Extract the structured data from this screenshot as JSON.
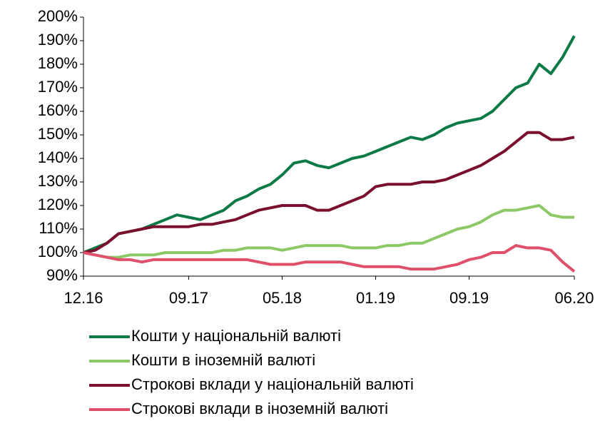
{
  "chart_data": {
    "type": "line",
    "categories": [
      "12.16",
      null,
      null,
      null,
      null,
      null,
      null,
      null,
      null,
      "09.17",
      null,
      null,
      null,
      null,
      null,
      null,
      null,
      "05.18",
      null,
      null,
      null,
      null,
      null,
      null,
      null,
      "01.19",
      null,
      null,
      null,
      null,
      null,
      null,
      null,
      "09.19",
      null,
      null,
      null,
      null,
      null,
      null,
      null,
      null,
      "06.20"
    ],
    "series": [
      {
        "name": "Кошти у національній валюті",
        "color": "#0b7a45",
        "values": [
          100,
          102,
          104,
          108,
          109,
          110,
          112,
          114,
          116,
          115,
          114,
          116,
          118,
          122,
          124,
          127,
          129,
          133,
          138,
          139,
          137,
          136,
          138,
          140,
          141,
          143,
          145,
          147,
          149,
          148,
          150,
          153,
          155,
          156,
          157,
          160,
          165,
          170,
          172,
          180,
          176,
          183,
          192
        ]
      },
      {
        "name": "Кошти в іноземній валюті",
        "color": "#8cc865",
        "values": [
          100,
          99,
          98,
          98,
          99,
          99,
          99,
          100,
          100,
          100,
          100,
          100,
          101,
          101,
          102,
          102,
          102,
          101,
          102,
          103,
          103,
          103,
          103,
          102,
          102,
          102,
          103,
          103,
          104,
          104,
          106,
          108,
          110,
          111,
          113,
          116,
          118,
          118,
          119,
          120,
          116,
          115,
          115
        ]
      },
      {
        "name": "Строкові вклади у національній валюті",
        "color": "#7a0f2e",
        "values": [
          100,
          101,
          104,
          108,
          109,
          110,
          111,
          111,
          111,
          111,
          112,
          112,
          113,
          114,
          116,
          118,
          119,
          120,
          120,
          120,
          118,
          118,
          120,
          122,
          124,
          128,
          129,
          129,
          129,
          130,
          130,
          131,
          133,
          135,
          137,
          140,
          143,
          147,
          151,
          151,
          148,
          148,
          149
        ]
      },
      {
        "name": "Строкові вклади в іноземній валюті",
        "color": "#e0506a",
        "values": [
          100,
          99,
          98,
          97,
          97,
          96,
          97,
          97,
          97,
          97,
          97,
          97,
          97,
          97,
          97,
          96,
          95,
          95,
          95,
          96,
          96,
          96,
          96,
          95,
          94,
          94,
          94,
          94,
          93,
          93,
          93,
          94,
          95,
          97,
          98,
          100,
          100,
          103,
          102,
          102,
          101,
          96,
          92
        ]
      }
    ],
    "ylim": [
      90,
      200
    ],
    "yticks": [
      {
        "value": 90,
        "label": "90%"
      },
      {
        "value": 100,
        "label": "100%"
      },
      {
        "value": 110,
        "label": "110%"
      },
      {
        "value": 120,
        "label": "120%"
      },
      {
        "value": 130,
        "label": "130%"
      },
      {
        "value": 140,
        "label": "140%"
      },
      {
        "value": 150,
        "label": "150%"
      },
      {
        "value": 160,
        "label": "160%"
      },
      {
        "value": 170,
        "label": "170%"
      },
      {
        "value": 180,
        "label": "180%"
      },
      {
        "value": 190,
        "label": "190%"
      },
      {
        "value": 200,
        "label": "200%"
      }
    ]
  }
}
